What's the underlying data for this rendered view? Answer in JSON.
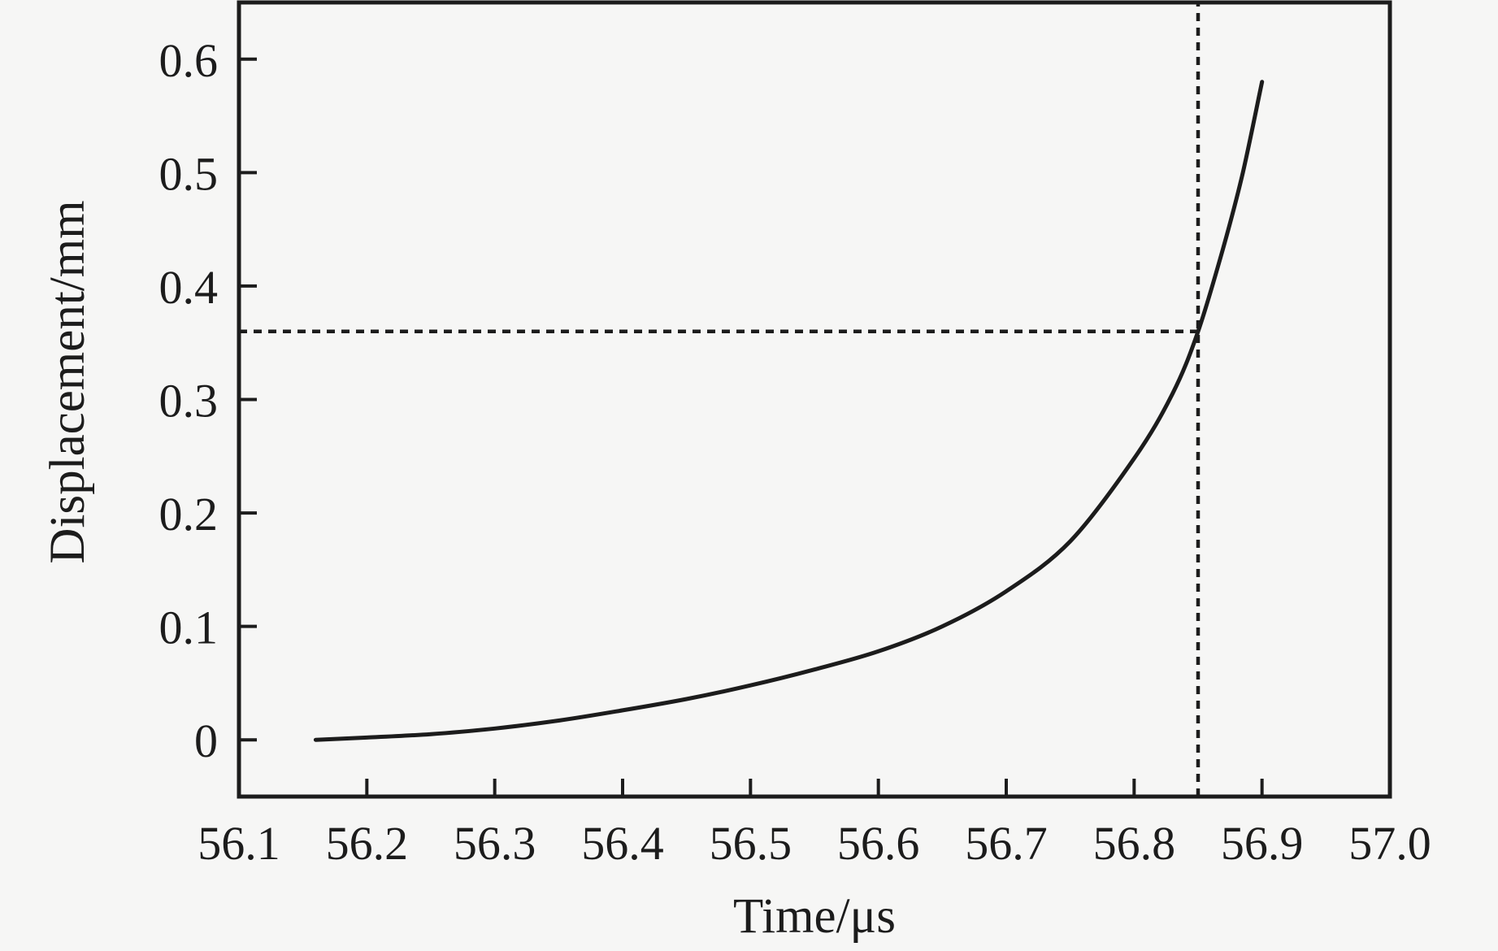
{
  "figure": {
    "background": "#f6f6f5",
    "ink_color": "#1c1c1c",
    "frame": "full-box",
    "tick_direction": "in"
  },
  "chart_data": {
    "type": "line",
    "title": "",
    "xlabel": "Time/μs",
    "ylabel": "Displacement/mm",
    "xlim": [
      56.1,
      57.0
    ],
    "ylim": [
      -0.05,
      0.65
    ],
    "grid": false,
    "legend": null,
    "x_ticks": [
      56.1,
      56.2,
      56.3,
      56.4,
      56.5,
      56.6,
      56.7,
      56.8,
      56.9,
      57.0
    ],
    "x_tick_labels": [
      "56.1",
      "56.2",
      "56.3",
      "56.4",
      "56.5",
      "56.6",
      "56.7",
      "56.8",
      "56.9",
      "57.0"
    ],
    "y_ticks": [
      0,
      0.1,
      0.2,
      0.3,
      0.4,
      0.5,
      0.6
    ],
    "y_tick_labels": [
      "0",
      "0.1",
      "0.2",
      "0.3",
      "0.4",
      "0.5",
      "0.6"
    ],
    "series": [
      {
        "name": "displacement-vs-time",
        "color": "#1c1c1c",
        "line_style": "solid",
        "points": [
          [
            56.16,
            0.0
          ],
          [
            56.2,
            0.002
          ],
          [
            56.25,
            0.005
          ],
          [
            56.3,
            0.01
          ],
          [
            56.35,
            0.017
          ],
          [
            56.4,
            0.026
          ],
          [
            56.45,
            0.036
          ],
          [
            56.5,
            0.048
          ],
          [
            56.55,
            0.062
          ],
          [
            56.6,
            0.078
          ],
          [
            56.65,
            0.1
          ],
          [
            56.7,
            0.131
          ],
          [
            56.75,
            0.175
          ],
          [
            56.8,
            0.248
          ],
          [
            56.83,
            0.305
          ],
          [
            56.85,
            0.36
          ],
          [
            56.87,
            0.435
          ],
          [
            56.885,
            0.5
          ],
          [
            56.9,
            0.58
          ]
        ]
      }
    ],
    "annotations": {
      "guide_lines": {
        "style": "dashed",
        "time": 56.85,
        "displacement": 0.36,
        "horizontal_extent": "from y-axis to intersection",
        "vertical_extent": "full plot height"
      }
    }
  }
}
